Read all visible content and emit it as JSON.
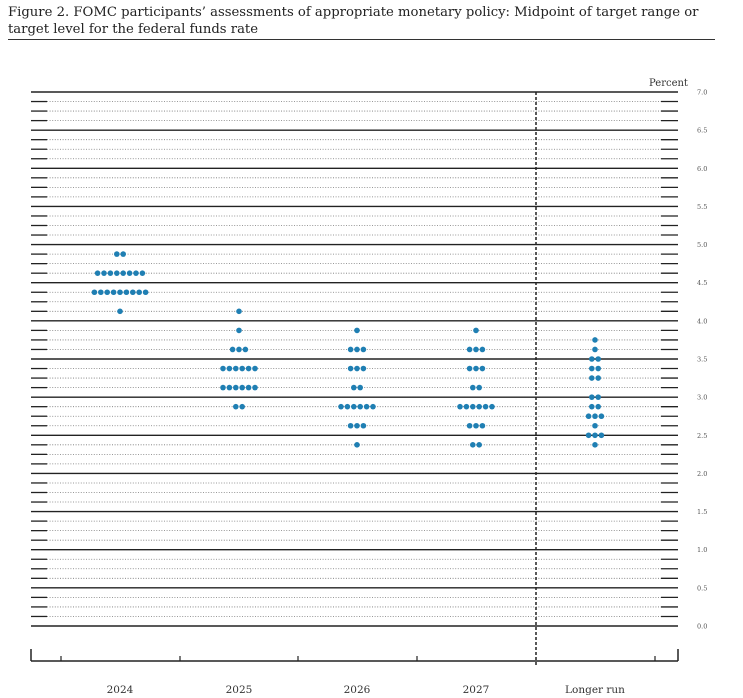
{
  "figure": {
    "title": "Figure 2.  FOMC participants’ assessments of appropriate monetary policy: Midpoint of target range or target level for the federal funds rate"
  },
  "chart_data": {
    "type": "scatter",
    "subtype": "dot-plot",
    "ylabel": "Percent",
    "ylim": [
      0,
      7
    ],
    "y_ticks": [
      "0.0",
      "0.5",
      "1.0",
      "1.5",
      "2.0",
      "2.5",
      "3.0",
      "3.5",
      "4.0",
      "4.5",
      "5.0",
      "5.5",
      "6.0",
      "6.5",
      "7.0"
    ],
    "categories": [
      "2024",
      "2025",
      "2026",
      "2027",
      "Longer run"
    ],
    "dot_color": "#1f7fb3",
    "series": [
      {
        "category": "2024",
        "points": [
          {
            "y": 4.875,
            "count": 2
          },
          {
            "y": 4.625,
            "count": 8
          },
          {
            "y": 4.375,
            "count": 9
          },
          {
            "y": 4.125,
            "count": 1
          }
        ]
      },
      {
        "category": "2025",
        "points": [
          {
            "y": 4.125,
            "count": 1
          },
          {
            "y": 3.875,
            "count": 1
          },
          {
            "y": 3.625,
            "count": 3
          },
          {
            "y": 3.375,
            "count": 6
          },
          {
            "y": 3.125,
            "count": 6
          },
          {
            "y": 2.875,
            "count": 2
          }
        ]
      },
      {
        "category": "2026",
        "points": [
          {
            "y": 3.875,
            "count": 1
          },
          {
            "y": 3.625,
            "count": 3
          },
          {
            "y": 3.375,
            "count": 3
          },
          {
            "y": 3.125,
            "count": 2
          },
          {
            "y": 2.875,
            "count": 6
          },
          {
            "y": 2.625,
            "count": 3
          },
          {
            "y": 2.375,
            "count": 1
          }
        ]
      },
      {
        "category": "2027",
        "points": [
          {
            "y": 3.875,
            "count": 1
          },
          {
            "y": 3.625,
            "count": 3
          },
          {
            "y": 3.375,
            "count": 3
          },
          {
            "y": 3.125,
            "count": 2
          },
          {
            "y": 2.875,
            "count": 6
          },
          {
            "y": 2.625,
            "count": 3
          },
          {
            "y": 2.375,
            "count": 2
          }
        ]
      },
      {
        "category": "Longer run",
        "points": [
          {
            "y": 3.75,
            "count": 1
          },
          {
            "y": 3.625,
            "count": 1
          },
          {
            "y": 3.5,
            "count": 2
          },
          {
            "y": 3.375,
            "count": 2
          },
          {
            "y": 3.25,
            "count": 2
          },
          {
            "y": 3.0,
            "count": 2
          },
          {
            "y": 2.875,
            "count": 2
          },
          {
            "y": 2.75,
            "count": 3
          },
          {
            "y": 2.625,
            "count": 1
          },
          {
            "y": 2.5,
            "count": 3
          },
          {
            "y": 2.375,
            "count": 1
          }
        ]
      }
    ],
    "grid": true
  }
}
